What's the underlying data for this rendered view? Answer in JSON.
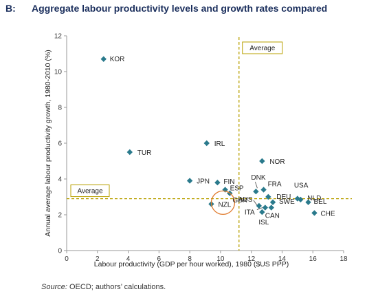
{
  "panel": {
    "letter": "B:",
    "title": "Aggregate labour productivity levels and growth rates compared"
  },
  "source": {
    "label": "Source:",
    "text": "OECD; authors’ calculations."
  },
  "colors": {
    "marker": "#2a7a8c",
    "average_line": "#b8a000",
    "highlight_circle": "#e07a2c",
    "axis": "#999999"
  },
  "chart_data": {
    "type": "scatter",
    "xlabel": "Labour productivity (GDP per hour worked), 1980 ($US PPP)",
    "ylabel": "Annual average labour productivity growth, 1980-2010 (%)",
    "xlim": [
      0,
      18
    ],
    "ylim": [
      0,
      12
    ],
    "x_ticks": [
      0,
      2,
      4,
      6,
      8,
      10,
      12,
      14,
      16,
      18
    ],
    "y_ticks": [
      0,
      2,
      4,
      6,
      8,
      10,
      12
    ],
    "grid": false,
    "average": {
      "x": 11.2,
      "y": 2.9,
      "x_label": "Average",
      "y_label": "Average"
    },
    "highlight": "NZL",
    "points": [
      {
        "label": "KOR",
        "x": 2.4,
        "y": 10.7
      },
      {
        "label": "TUR",
        "x": 4.1,
        "y": 5.5
      },
      {
        "label": "IRL",
        "x": 9.1,
        "y": 6.0
      },
      {
        "label": "JPN",
        "x": 8.0,
        "y": 3.9
      },
      {
        "label": "FIN",
        "x": 9.8,
        "y": 3.8
      },
      {
        "label": "ESP",
        "x": 10.3,
        "y": 3.4
      },
      {
        "label": "GBR",
        "x": 10.6,
        "y": 3.2
      },
      {
        "label": "NZL",
        "x": 9.4,
        "y": 2.6
      },
      {
        "label": "NOR",
        "x": 12.7,
        "y": 5.0
      },
      {
        "label": "DNK",
        "x": 12.3,
        "y": 3.3
      },
      {
        "label": "FRA",
        "x": 12.8,
        "y": 3.4
      },
      {
        "label": "DEU",
        "x": 13.1,
        "y": 3.0
      },
      {
        "label": "AUS",
        "x": 12.5,
        "y": 2.5
      },
      {
        "label": "ITA",
        "x": 12.9,
        "y": 2.4
      },
      {
        "label": "SWE",
        "x": 13.4,
        "y": 2.7
      },
      {
        "label": "CAN",
        "x": 13.3,
        "y": 2.4
      },
      {
        "label": "ISL",
        "x": 12.7,
        "y": 2.15
      },
      {
        "label": "USA",
        "x": 15.0,
        "y": 2.9
      },
      {
        "label": "NLD",
        "x": 15.2,
        "y": 2.85
      },
      {
        "label": "BEL",
        "x": 15.7,
        "y": 2.7
      },
      {
        "label": "CHE",
        "x": 16.1,
        "y": 2.1
      }
    ]
  }
}
